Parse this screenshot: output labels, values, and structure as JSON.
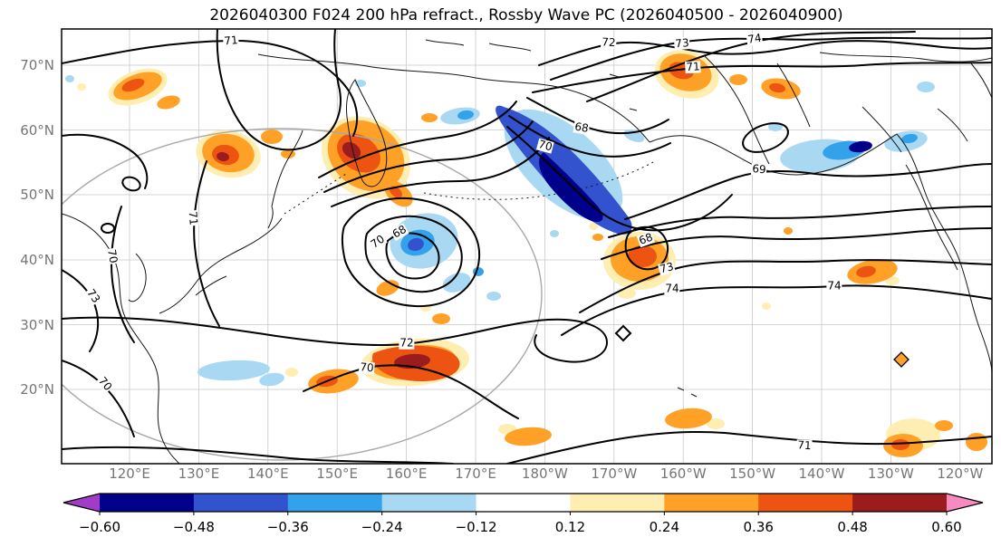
{
  "title": "2026040300 F024 200 hPa refract., Rossby Wave PC (2026040500 - 2026040900)",
  "axes": {
    "lat_ticks": [
      "70°N",
      "60°N",
      "50°N",
      "40°N",
      "30°N",
      "20°N"
    ],
    "lon_ticks": [
      "120°E",
      "130°E",
      "140°E",
      "150°E",
      "160°E",
      "170°E",
      "180°W",
      "170°W",
      "160°W",
      "150°W",
      "140°W",
      "130°W",
      "120°W"
    ]
  },
  "colorbar": {
    "tick_labels": [
      "−0.60",
      "−0.48",
      "−0.36",
      "−0.24",
      "−0.12",
      "0.12",
      "0.24",
      "0.36",
      "0.48",
      "0.60"
    ],
    "tick_values": [
      -0.6,
      -0.48,
      -0.36,
      -0.24,
      -0.12,
      0.12,
      0.24,
      0.36,
      0.48,
      0.6
    ]
  },
  "palette": {
    "contour": "#000000",
    "coast": "#161616",
    "grid": "#c9c9c9",
    "graycircle": "#a8a8a8",
    "axis_text": "#757575",
    "purple": "#a23bc8",
    "navy": "#00008b",
    "royal": "#3253cd",
    "blue": "#34a2ea",
    "lightblue": "#a9d9f2",
    "white": "#ffffff",
    "cream": "#ffeeb2",
    "orange": "#ffa126",
    "redorange": "#ee5411",
    "darkred": "#9b1c1c",
    "pink": "#f78ac1"
  },
  "chart_data": {
    "type": "contour-map",
    "title": "2026040300 F024 200 hPa refract., Rossby Wave PC (2026040500 - 2026040900)",
    "x_ticks": [
      "120°E",
      "130°E",
      "140°E",
      "150°E",
      "160°E",
      "170°E",
      "180°W",
      "170°W",
      "160°W",
      "150°W",
      "140°W",
      "130°W",
      "120°W"
    ],
    "y_ticks": [
      "70°N",
      "60°N",
      "50°N",
      "40°N",
      "30°N",
      "20°N"
    ],
    "grid": true,
    "contour_levels": [
      68,
      69,
      70,
      71,
      72,
      73,
      74
    ],
    "contour_labels": [
      {
        "v": "71",
        "x": 255,
        "y": 45,
        "r": -5
      },
      {
        "v": "72",
        "x": 672,
        "y": 47,
        "r": 3
      },
      {
        "v": "73",
        "x": 753,
        "y": 48,
        "r": -5
      },
      {
        "v": "74",
        "x": 833,
        "y": 43,
        "r": -8
      },
      {
        "v": "71",
        "x": 765,
        "y": 74,
        "r": -3
      },
      {
        "v": "68",
        "x": 642,
        "y": 141,
        "r": 10
      },
      {
        "v": "70",
        "x": 602,
        "y": 161,
        "r": 15
      },
      {
        "v": "69",
        "x": 838,
        "y": 187,
        "r": 5
      },
      {
        "v": "71",
        "x": 213,
        "y": 241,
        "r": 85
      },
      {
        "v": "70",
        "x": 124,
        "y": 283,
        "r": 80
      },
      {
        "v": "73",
        "x": 103,
        "y": 327,
        "r": 55
      },
      {
        "v": "68",
        "x": 441,
        "y": 256,
        "r": -30
      },
      {
        "v": "70",
        "x": 417,
        "y": 267,
        "r": -35
      },
      {
        "v": "68",
        "x": 713,
        "y": 264,
        "r": -20
      },
      {
        "v": "73",
        "x": 736,
        "y": 296,
        "r": -15
      },
      {
        "v": "74",
        "x": 742,
        "y": 319,
        "r": 0
      },
      {
        "v": "74",
        "x": 921,
        "y": 316,
        "r": 0
      },
      {
        "v": "72",
        "x": 449,
        "y": 379,
        "r": 0
      },
      {
        "v": "70",
        "x": 405,
        "y": 406,
        "r": 5
      },
      {
        "v": "70",
        "x": 116,
        "y": 424,
        "r": 50
      },
      {
        "v": "71",
        "x": 888,
        "y": 492,
        "r": 3
      }
    ],
    "shading": {
      "levels": [
        -0.6,
        -0.48,
        -0.36,
        -0.24,
        -0.12,
        0.12,
        0.24,
        0.36,
        0.48,
        0.6
      ],
      "colors": [
        "#a23bc8",
        "#00008b",
        "#3253cd",
        "#34a2ea",
        "#a9d9f2",
        "#ffffff",
        "#ffeeb2",
        "#ffa126",
        "#ee5411",
        "#9b1c1c",
        "#f78ac1"
      ],
      "extend": "both",
      "legend_position": "bottom"
    }
  }
}
